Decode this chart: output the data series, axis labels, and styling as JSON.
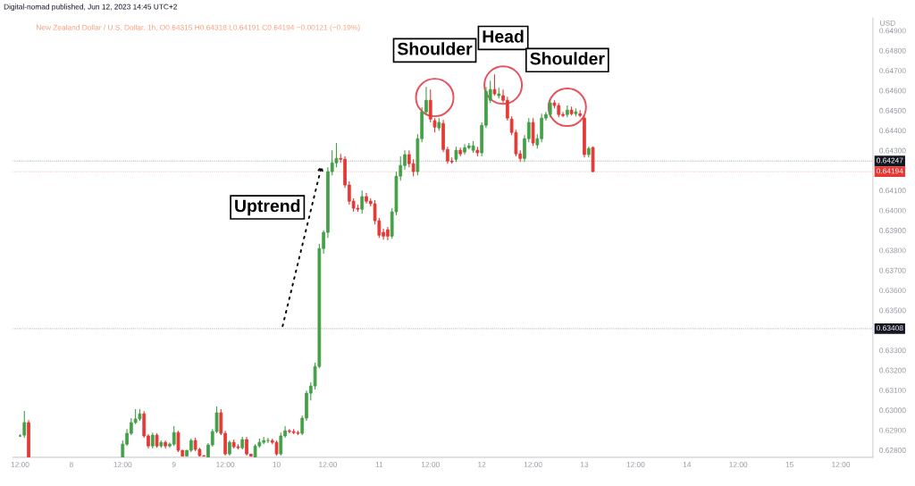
{
  "chart_data": {
    "type": "candlestick",
    "title": "Digital-nomad published, Jun 12, 2023 14:45 UTC+2",
    "subtitle": "New Zealand Dollar / U.S. Dollar, 1h, O0.64315 H0.64318 L0.64191 C0.64194 −0.00121 (−0.19%)",
    "ylabel": "USD",
    "x": [
      "2023-06-07T12:00",
      "2023-06-07T13:00",
      "2023-06-07T14:00",
      "2023-06-08T12:00",
      "2023-06-08T13:00",
      "2023-06-08T14:00",
      "2023-06-08T15:00",
      "2023-06-08T16:00",
      "2023-06-08T17:00",
      "2023-06-08T18:00",
      "2023-06-08T19:00",
      "2023-06-08T20:00",
      "2023-06-08T21:00",
      "2023-06-08T22:00",
      "2023-06-08T23:00",
      "2023-06-09T00:00",
      "2023-06-09T01:00",
      "2023-06-09T02:00",
      "2023-06-09T03:00",
      "2023-06-09T04:00",
      "2023-06-09T05:00",
      "2023-06-09T06:00",
      "2023-06-09T07:00",
      "2023-06-09T08:00",
      "2023-06-09T09:00",
      "2023-06-09T10:00",
      "2023-06-09T11:00",
      "2023-06-09T12:00",
      "2023-06-09T13:00",
      "2023-06-09T14:00",
      "2023-06-09T15:00",
      "2023-06-09T16:00",
      "2023-06-09T17:00",
      "2023-06-09T18:00",
      "2023-06-09T19:00",
      "2023-06-09T20:00",
      "2023-06-09T21:00",
      "2023-06-09T22:00",
      "2023-06-09T23:00",
      "2023-06-10T00:00",
      "2023-06-10T01:00",
      "2023-06-10T02:00",
      "2023-06-10T03:00",
      "2023-06-10T04:00",
      "2023-06-10T05:00",
      "2023-06-10T06:00",
      "2023-06-10T07:00",
      "2023-06-10T08:00",
      "2023-06-10T09:00",
      "2023-06-10T10:00",
      "2023-06-10T11:00",
      "2023-06-10T12:00",
      "2023-06-10T13:00",
      "2023-06-10T14:00",
      "2023-06-10T15:00",
      "2023-06-10T16:00",
      "2023-06-10T17:00",
      "2023-06-10T18:00",
      "2023-06-10T19:00",
      "2023-06-10T20:00",
      "2023-06-10T21:00",
      "2023-06-10T22:00",
      "2023-06-10T23:00",
      "2023-06-11T00:00",
      "2023-06-11T01:00",
      "2023-06-11T02:00",
      "2023-06-11T03:00",
      "2023-06-11T04:00",
      "2023-06-11T05:00",
      "2023-06-11T06:00",
      "2023-06-11T07:00",
      "2023-06-11T08:00",
      "2023-06-11T09:00",
      "2023-06-11T10:00",
      "2023-06-11T11:00",
      "2023-06-11T12:00",
      "2023-06-11T13:00",
      "2023-06-11T14:00",
      "2023-06-11T15:00",
      "2023-06-11T16:00",
      "2023-06-11T17:00",
      "2023-06-11T18:00",
      "2023-06-11T19:00",
      "2023-06-11T20:00",
      "2023-06-11T21:00",
      "2023-06-11T22:00",
      "2023-06-11T23:00",
      "2023-06-12T00:00",
      "2023-06-12T01:00",
      "2023-06-12T02:00",
      "2023-06-12T03:00",
      "2023-06-12T04:00",
      "2023-06-12T05:00",
      "2023-06-12T06:00",
      "2023-06-12T07:00",
      "2023-06-12T08:00",
      "2023-06-12T09:00",
      "2023-06-12T10:00",
      "2023-06-12T11:00",
      "2023-06-12T12:00",
      "2023-06-12T13:00",
      "2023-06-12T14:00",
      "2023-06-12T15:00",
      "2023-06-12T16:00",
      "2023-06-12T17:00",
      "2023-06-12T18:00",
      "2023-06-12T19:00",
      "2023-06-12T20:00",
      "2023-06-12T21:00",
      "2023-06-12T22:00",
      "2023-06-12T23:00",
      "2023-06-13T00:00",
      "2023-06-13T01:00",
      "2023-06-13T02:00"
    ],
    "ohlc": [
      [
        0.62871,
        0.6288,
        0.62866,
        0.62871
      ],
      [
        0.62875,
        0.62996,
        0.62862,
        0.62938
      ],
      [
        0.62938,
        0.6295,
        0.62765,
        0.62765
      ],
      [
        0.62765,
        0.62848,
        0.62765,
        0.6283
      ],
      [
        0.6283,
        0.62906,
        0.62821,
        0.62884
      ],
      [
        0.62884,
        0.6296,
        0.62875,
        0.62938
      ],
      [
        0.62938,
        0.63005,
        0.6293,
        0.62956
      ],
      [
        0.62956,
        0.63005,
        0.62947,
        0.62982
      ],
      [
        0.62982,
        0.62995,
        0.62862,
        0.62871
      ],
      [
        0.62871,
        0.6288,
        0.62808,
        0.62821
      ],
      [
        0.62821,
        0.62888,
        0.62808,
        0.62875
      ],
      [
        0.62875,
        0.62884,
        0.62812,
        0.62821
      ],
      [
        0.62821,
        0.62848,
        0.62812,
        0.62839
      ],
      [
        0.62839,
        0.62848,
        0.62808,
        0.62821
      ],
      [
        0.62821,
        0.62839,
        0.62812,
        0.6283
      ],
      [
        0.6283,
        0.6292,
        0.62821,
        0.62888
      ],
      [
        0.62888,
        0.62897,
        0.6279,
        0.62799
      ],
      [
        0.62799,
        0.628,
        0.6277,
        0.6277
      ],
      [
        0.6277,
        0.628,
        0.6277,
        0.62799
      ],
      [
        0.62799,
        0.62857,
        0.6279,
        0.62848
      ],
      [
        0.62848,
        0.62862,
        0.62795,
        0.62804
      ],
      [
        0.62804,
        0.62812,
        0.62768,
        0.62772
      ],
      [
        0.62772,
        0.62775,
        0.6277,
        0.6277
      ],
      [
        0.62765,
        0.62835,
        0.62765,
        0.62826
      ],
      [
        0.62826,
        0.62906,
        0.62817,
        0.62893
      ],
      [
        0.62893,
        0.63018,
        0.62884,
        0.62987
      ],
      [
        0.62987,
        0.63005,
        0.62875,
        0.62884
      ],
      [
        0.62884,
        0.62897,
        0.62772,
        0.62781
      ],
      [
        0.62781,
        0.62848,
        0.62772,
        0.62839
      ],
      [
        0.62839,
        0.62853,
        0.62808,
        0.62817
      ],
      [
        0.62817,
        0.6283,
        0.62804,
        0.62812
      ],
      [
        0.62812,
        0.62866,
        0.62804,
        0.62853
      ],
      [
        0.62853,
        0.62866,
        0.62772,
        0.62781
      ],
      [
        0.6278,
        0.6278,
        0.6277,
        0.6277
      ],
      [
        0.62765,
        0.6283,
        0.62765,
        0.62821
      ],
      [
        0.62821,
        0.62857,
        0.62812,
        0.62839
      ],
      [
        0.62839,
        0.62866,
        0.6283,
        0.62848
      ],
      [
        0.62848,
        0.62862,
        0.62835,
        0.62848
      ],
      [
        0.62848,
        0.62857,
        0.6283,
        0.62839
      ],
      [
        0.62839,
        0.62848,
        0.62772,
        0.62781
      ],
      [
        0.62781,
        0.62888,
        0.62772,
        0.62871
      ],
      [
        0.62871,
        0.6292,
        0.62862,
        0.62897
      ],
      [
        0.62897,
        0.62906,
        0.62884,
        0.62893
      ],
      [
        0.62893,
        0.62906,
        0.6288,
        0.62888
      ],
      [
        0.62888,
        0.62897,
        0.62875,
        0.62884
      ],
      [
        0.62884,
        0.62973,
        0.62875,
        0.6296
      ],
      [
        0.6296,
        0.63098,
        0.62947,
        0.63085
      ],
      [
        0.63085,
        0.63139,
        0.63049,
        0.63121
      ],
      [
        0.63121,
        0.63237,
        0.63103,
        0.63219
      ],
      [
        0.63219,
        0.63832,
        0.6321,
        0.63809
      ],
      [
        0.63809,
        0.63899,
        0.63783,
        0.6389
      ],
      [
        0.6389,
        0.64216,
        0.63863,
        0.64194
      ],
      [
        0.64194,
        0.64301,
        0.64176,
        0.64238
      ],
      [
        0.64238,
        0.64337,
        0.64216,
        0.6426
      ],
      [
        0.6426,
        0.64283,
        0.64238,
        0.64256
      ],
      [
        0.64256,
        0.6427,
        0.64113,
        0.64127
      ],
      [
        0.64127,
        0.64145,
        0.64029,
        0.64046
      ],
      [
        0.64046,
        0.6406,
        0.63993,
        0.64011
      ],
      [
        0.64011,
        0.64029,
        0.63993,
        0.64006
      ],
      [
        0.64006,
        0.641,
        0.63984,
        0.64069
      ],
      [
        0.64069,
        0.64087,
        0.64033,
        0.64046
      ],
      [
        0.64046,
        0.6406,
        0.6402,
        0.64033
      ],
      [
        0.64033,
        0.64051,
        0.6393,
        0.63948
      ],
      [
        0.63948,
        0.63962,
        0.63863,
        0.63876
      ],
      [
        0.6389,
        0.63908,
        0.63854,
        0.63871
      ],
      [
        0.63903,
        0.63917,
        0.6385,
        0.63871
      ],
      [
        0.63871,
        0.64011,
        0.63858,
        0.63993
      ],
      [
        0.63993,
        0.64194,
        0.63975,
        0.64171
      ],
      [
        0.64171,
        0.6427,
        0.64149,
        0.64225
      ],
      [
        0.64225,
        0.64301,
        0.64203,
        0.64279
      ],
      [
        0.64279,
        0.64301,
        0.64216,
        0.64234
      ],
      [
        0.64234,
        0.64256,
        0.64171,
        0.64194
      ],
      [
        0.64194,
        0.64381,
        0.64176,
        0.64359
      ],
      [
        0.64359,
        0.64516,
        0.64341,
        0.64493
      ],
      [
        0.64493,
        0.64618,
        0.64475,
        0.64551
      ],
      [
        0.64551,
        0.64605,
        0.6444,
        0.64457
      ],
      [
        0.64449,
        0.64462,
        0.6439,
        0.64417
      ],
      [
        0.64413,
        0.64462,
        0.64399,
        0.6444
      ],
      [
        0.64435,
        0.64453,
        0.64292,
        0.64305
      ],
      [
        0.64305,
        0.64319,
        0.64234,
        0.64247
      ],
      [
        0.64247,
        0.64265,
        0.64234,
        0.64243
      ],
      [
        0.64256,
        0.64319,
        0.64243,
        0.64301
      ],
      [
        0.64301,
        0.64314,
        0.6427,
        0.64283
      ],
      [
        0.64292,
        0.64332,
        0.64279,
        0.64314
      ],
      [
        0.64314,
        0.64337,
        0.64305,
        0.64323
      ],
      [
        0.64301,
        0.64346,
        0.64288,
        0.64323
      ],
      [
        0.64301,
        0.64319,
        0.6427,
        0.64288
      ],
      [
        0.64288,
        0.6444,
        0.6427,
        0.64426
      ],
      [
        0.64426,
        0.64618,
        0.64413,
        0.64596
      ],
      [
        0.64551,
        0.6465,
        0.64538,
        0.64605
      ],
      [
        0.64605,
        0.64681,
        0.64574,
        0.64583
      ],
      [
        0.64574,
        0.64614,
        0.6456,
        0.64583
      ],
      [
        0.64574,
        0.64605,
        0.64538,
        0.64551
      ],
      [
        0.64551,
        0.64569,
        0.64449,
        0.64462
      ],
      [
        0.64457,
        0.64471,
        0.64377,
        0.6439
      ],
      [
        0.6439,
        0.64404,
        0.6427,
        0.64283
      ],
      [
        0.64283,
        0.64301,
        0.64243,
        0.6426
      ],
      [
        0.6426,
        0.64377,
        0.64243,
        0.64359
      ],
      [
        0.64359,
        0.64462,
        0.64341,
        0.6444
      ],
      [
        0.6444,
        0.64462,
        0.64323,
        0.64337
      ],
      [
        0.64328,
        0.64381,
        0.6431,
        0.64359
      ],
      [
        0.64359,
        0.64484,
        0.64341,
        0.64462
      ],
      [
        0.64462,
        0.64493,
        0.64449,
        0.6448
      ],
      [
        0.6448,
        0.64556,
        0.64466,
        0.64538
      ],
      [
        0.64538,
        0.64551,
        0.64511,
        0.64525
      ],
      [
        0.64525,
        0.64538,
        0.64466,
        0.6448
      ],
      [
        0.6448,
        0.64493,
        0.64466,
        0.64475
      ],
      [
        0.6448,
        0.64525,
        0.64466,
        0.64502
      ],
      [
        0.64502,
        0.6452,
        0.64475,
        0.64484
      ],
      [
        0.64484,
        0.64511,
        0.64471,
        0.64493
      ],
      [
        0.64484,
        0.64502,
        0.64466,
        0.64475
      ],
      [
        0.64462,
        0.64475,
        0.64265,
        0.64279
      ],
      [
        0.64279,
        0.64319,
        0.64265,
        0.6431
      ],
      [
        0.64315,
        0.64318,
        0.64191,
        0.64194
      ]
    ],
    "colors": [
      "#43a047",
      "#43a047",
      "#e53935",
      "#43a047",
      "#43a047",
      "#43a047",
      "#43a047",
      "#43a047",
      "#e53935",
      "#e53935",
      "#43a047",
      "#e53935",
      "#43a047",
      "#e53935",
      "#43a047",
      "#43a047",
      "#e53935",
      "#e53935",
      "#43a047",
      "#43a047",
      "#e53935",
      "#e53935",
      "#e53935",
      "#43a047",
      "#43a047",
      "#43a047",
      "#e53935",
      "#e53935",
      "#43a047",
      "#e53935",
      "#e53935",
      "#43a047",
      "#e53935",
      "#e53935",
      "#43a047",
      "#43a047",
      "#43a047",
      "#43a047",
      "#e53935",
      "#e53935",
      "#43a047",
      "#43a047",
      "#e53935",
      "#e53935",
      "#e53935",
      "#43a047",
      "#43a047",
      "#43a047",
      "#43a047",
      "#43a047",
      "#43a047",
      "#43a047",
      "#43a047",
      "#43a047",
      "#e53935",
      "#e53935",
      "#e53935",
      "#e53935",
      "#e53935",
      "#43a047",
      "#e53935",
      "#e53935",
      "#e53935",
      "#e53935",
      "#e53935",
      "#e53935",
      "#43a047",
      "#43a047",
      "#43a047",
      "#43a047",
      "#e53935",
      "#e53935",
      "#43a047",
      "#43a047",
      "#43a047",
      "#e53935",
      "#e53935",
      "#43a047",
      "#e53935",
      "#e53935",
      "#e53935",
      "#43a047",
      "#e53935",
      "#43a047",
      "#43a047",
      "#43a047",
      "#e53935",
      "#43a047",
      "#43a047",
      "#43a047",
      "#e53935",
      "#43a047",
      "#e53935",
      "#e53935",
      "#e53935",
      "#e53935",
      "#e53935",
      "#43a047",
      "#43a047",
      "#e53935",
      "#43a047",
      "#43a047",
      "#43a047",
      "#43a047",
      "#e53935",
      "#e53935",
      "#e53935",
      "#43a047",
      "#e53935",
      "#43a047",
      "#e53935",
      "#e53935",
      "#43a047",
      "#e53935"
    ],
    "xlim": [
      "2023-06-07T10:18",
      "2023-06-15T19:30"
    ],
    "xticks": [
      {
        "value": "2023-06-07T12:00",
        "label": "12:00"
      },
      {
        "value": "2023-06-08",
        "label": "8"
      },
      {
        "value": "2023-06-08T12:00",
        "label": "12:00"
      },
      {
        "value": "2023-06-09",
        "label": "9"
      },
      {
        "value": "2023-06-09T12:00",
        "label": "12:00"
      },
      {
        "value": "2023-06-10",
        "label": "10"
      },
      {
        "value": "2023-06-10T12:00",
        "label": "12:00"
      },
      {
        "value": "2023-06-11",
        "label": "11"
      },
      {
        "value": "2023-06-11T12:00",
        "label": "12:00"
      },
      {
        "value": "2023-06-12",
        "label": "12"
      },
      {
        "value": "2023-06-12T12:00",
        "label": "12:00"
      },
      {
        "value": "2023-06-13",
        "label": "13"
      },
      {
        "value": "2023-06-13T12:00",
        "label": "12:00"
      },
      {
        "value": "2023-06-14",
        "label": "14"
      },
      {
        "value": "2023-06-14T12:00",
        "label": "12:00"
      },
      {
        "value": "2023-06-15",
        "label": "15"
      },
      {
        "value": "2023-06-15T12:00",
        "label": "12:00"
      }
    ],
    "ylim": [
      0.62764,
      0.64963
    ],
    "yticks": [
      {
        "value": 0.628,
        "label": "0.62800"
      },
      {
        "value": 0.629,
        "label": "0.62900"
      },
      {
        "value": 0.63,
        "label": "0.63000"
      },
      {
        "value": 0.631,
        "label": "0.63100"
      },
      {
        "value": 0.632,
        "label": "0.63200"
      },
      {
        "value": 0.633,
        "label": "0.63300"
      },
      {
        "value": 0.635,
        "label": "0.63500"
      },
      {
        "value": 0.636,
        "label": "0.63600"
      },
      {
        "value": 0.637,
        "label": "0.63700"
      },
      {
        "value": 0.638,
        "label": "0.63800"
      },
      {
        "value": 0.639,
        "label": "0.63900"
      },
      {
        "value": 0.64,
        "label": "0.64000"
      },
      {
        "value": 0.641,
        "label": "0.64100"
      },
      {
        "value": 0.643,
        "label": "0.64300"
      },
      {
        "value": 0.644,
        "label": "0.64400"
      },
      {
        "value": 0.645,
        "label": "0.64500"
      },
      {
        "value": 0.646,
        "label": "0.64600"
      },
      {
        "value": 0.647,
        "label": "0.64700"
      },
      {
        "value": 0.648,
        "label": "0.64800"
      },
      {
        "value": 0.649,
        "label": "0.64900"
      }
    ],
    "ref_lines": [
      {
        "axis": "y",
        "value": 0.64247,
        "label": "0.64247",
        "color": "#131722",
        "line_style": "dotted"
      },
      {
        "axis": "y",
        "value": 0.64194,
        "label": "0.64194",
        "color": "#e53935",
        "line_style": "dotted"
      },
      {
        "axis": "y",
        "value": 0.63408,
        "label": "0.63408",
        "color": "#131722",
        "line_style": "dotted"
      }
    ],
    "annotations": [
      "Uptrend",
      {
        "text": "Shoulder",
        "x": "2023-06-11T13:00",
        "y": 0.64565
      },
      {
        "text": "Head",
        "x": "2023-06-12T05:00",
        "y": 0.64627
      },
      {
        "text": "Shoulder",
        "x": "2023-06-12T20:00",
        "y": 0.64516
      }
    ],
    "grid": false,
    "legend": false
  }
}
